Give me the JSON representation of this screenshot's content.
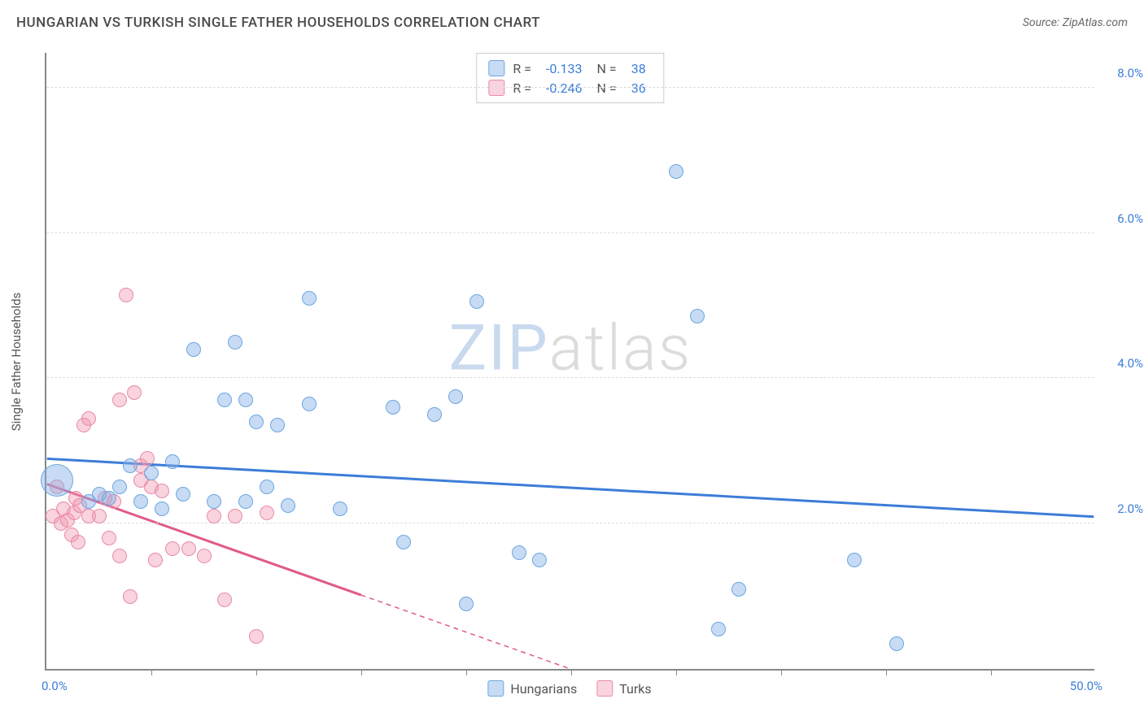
{
  "header": {
    "title": "HUNGARIAN VS TURKISH SINGLE FATHER HOUSEHOLDS CORRELATION CHART",
    "source": "Source: ZipAtlas.com"
  },
  "watermark": {
    "zip": "ZIP",
    "atlas": "atlas"
  },
  "chart": {
    "type": "scatter",
    "ylabel": "Single Father Households",
    "xlim": [
      0,
      50
    ],
    "ylim": [
      0,
      8.5
    ],
    "x_axis_color": "#3b7dd8",
    "y_axis_color": "#3b7dd8",
    "xlim_labels": {
      "min": "0.0%",
      "max": "50.0%"
    },
    "ytick_values": [
      2.0,
      4.0,
      6.0,
      8.0
    ],
    "ytick_labels": [
      "2.0%",
      "4.0%",
      "6.0%",
      "8.0%"
    ],
    "xtick_positions": [
      5,
      10,
      15,
      20,
      25,
      30,
      35,
      40,
      45
    ],
    "grid_color": "#dddddd",
    "background_color": "#ffffff",
    "marker_radius": 9,
    "series": {
      "hungarians": {
        "label": "Hungarians",
        "fill": "rgba(130, 175, 230, 0.45)",
        "stroke": "#6da6e0",
        "line_color": "#3b7dd8",
        "line_width": 3,
        "R": "-0.133",
        "N": "38",
        "trend": {
          "x1": 0,
          "y1": 2.9,
          "x2": 50,
          "y2": 2.1,
          "solid_until_x": 50
        },
        "points": [
          {
            "x": 0.5,
            "y": 2.6,
            "r": 20
          },
          {
            "x": 2.0,
            "y": 2.3
          },
          {
            "x": 2.5,
            "y": 2.4
          },
          {
            "x": 3.0,
            "y": 2.35
          },
          {
            "x": 3.5,
            "y": 2.5
          },
          {
            "x": 4.0,
            "y": 2.8
          },
          {
            "x": 4.5,
            "y": 2.3
          },
          {
            "x": 5.0,
            "y": 2.7
          },
          {
            "x": 5.5,
            "y": 2.2
          },
          {
            "x": 6.0,
            "y": 2.85
          },
          {
            "x": 6.5,
            "y": 2.4
          },
          {
            "x": 7.0,
            "y": 4.4
          },
          {
            "x": 8.0,
            "y": 2.3
          },
          {
            "x": 8.5,
            "y": 3.7
          },
          {
            "x": 9.0,
            "y": 4.5
          },
          {
            "x": 9.5,
            "y": 2.3
          },
          {
            "x": 9.5,
            "y": 3.7
          },
          {
            "x": 10.0,
            "y": 3.4
          },
          {
            "x": 10.5,
            "y": 2.5
          },
          {
            "x": 11.0,
            "y": 3.35
          },
          {
            "x": 11.5,
            "y": 2.25
          },
          {
            "x": 12.5,
            "y": 5.1
          },
          {
            "x": 12.5,
            "y": 3.65
          },
          {
            "x": 14.0,
            "y": 2.2
          },
          {
            "x": 16.5,
            "y": 3.6
          },
          {
            "x": 17.0,
            "y": 1.75
          },
          {
            "x": 18.5,
            "y": 3.5
          },
          {
            "x": 19.5,
            "y": 3.75
          },
          {
            "x": 20.0,
            "y": 0.9
          },
          {
            "x": 20.5,
            "y": 5.05
          },
          {
            "x": 22.5,
            "y": 1.6
          },
          {
            "x": 23.5,
            "y": 1.5
          },
          {
            "x": 30.0,
            "y": 6.85
          },
          {
            "x": 31.0,
            "y": 4.85
          },
          {
            "x": 32.0,
            "y": 0.55
          },
          {
            "x": 33.0,
            "y": 1.1
          },
          {
            "x": 38.5,
            "y": 1.5
          },
          {
            "x": 40.5,
            "y": 0.35
          }
        ]
      },
      "turks": {
        "label": "Turks",
        "fill": "rgba(240, 150, 175, 0.42)",
        "stroke": "#e88ba8",
        "line_color": "#e05a8a",
        "line_width": 3,
        "R": "-0.246",
        "N": "36",
        "trend": {
          "x1": 0,
          "y1": 2.55,
          "x2": 25,
          "y2": 0.0,
          "solid_until_x": 15
        },
        "points": [
          {
            "x": 0.3,
            "y": 2.1
          },
          {
            "x": 0.5,
            "y": 2.5
          },
          {
            "x": 0.7,
            "y": 2.0
          },
          {
            "x": 0.8,
            "y": 2.2
          },
          {
            "x": 1.0,
            "y": 2.05
          },
          {
            "x": 1.2,
            "y": 1.85
          },
          {
            "x": 1.3,
            "y": 2.15
          },
          {
            "x": 1.4,
            "y": 2.35
          },
          {
            "x": 1.5,
            "y": 1.75
          },
          {
            "x": 1.6,
            "y": 2.25
          },
          {
            "x": 1.8,
            "y": 3.35
          },
          {
            "x": 2.0,
            "y": 3.45
          },
          {
            "x": 2.0,
            "y": 2.1
          },
          {
            "x": 2.5,
            "y": 2.1
          },
          {
            "x": 2.8,
            "y": 2.35
          },
          {
            "x": 3.0,
            "y": 1.8
          },
          {
            "x": 3.2,
            "y": 2.3
          },
          {
            "x": 3.5,
            "y": 1.55
          },
          {
            "x": 3.5,
            "y": 3.7
          },
          {
            "x": 3.8,
            "y": 5.15
          },
          {
            "x": 4.0,
            "y": 1.0
          },
          {
            "x": 4.2,
            "y": 3.8
          },
          {
            "x": 4.5,
            "y": 2.8
          },
          {
            "x": 4.5,
            "y": 2.6
          },
          {
            "x": 4.8,
            "y": 2.9
          },
          {
            "x": 5.0,
            "y": 2.5
          },
          {
            "x": 5.2,
            "y": 1.5
          },
          {
            "x": 5.5,
            "y": 2.45
          },
          {
            "x": 6.0,
            "y": 1.65
          },
          {
            "x": 6.8,
            "y": 1.65
          },
          {
            "x": 7.5,
            "y": 1.55
          },
          {
            "x": 8.0,
            "y": 2.1
          },
          {
            "x": 8.5,
            "y": 0.95
          },
          {
            "x": 9.0,
            "y": 2.1
          },
          {
            "x": 10.0,
            "y": 0.45
          },
          {
            "x": 10.5,
            "y": 2.15
          }
        ]
      }
    }
  },
  "legend": {
    "stats_R_label": "R =",
    "stats_N_label": "N ="
  }
}
